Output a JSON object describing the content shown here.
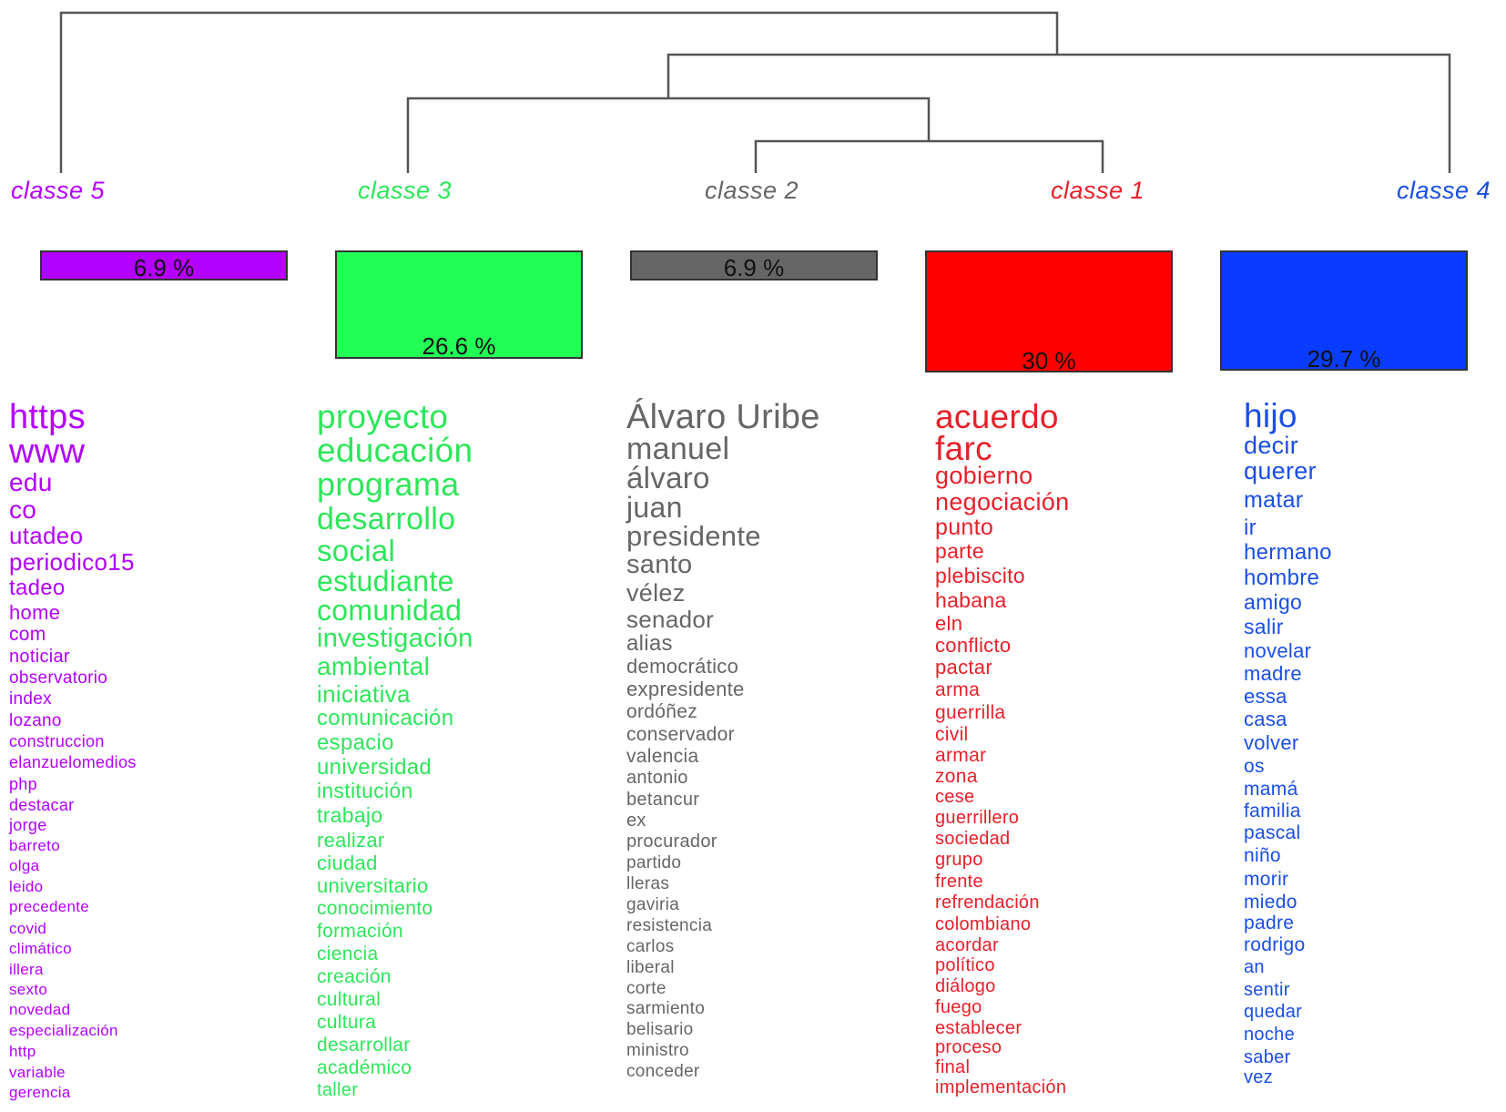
{
  "classes": [
    {
      "id": "classe-5",
      "label": "classe   5",
      "color": "#b300ff",
      "bar_fill": "#b300ff",
      "percent": 6.9,
      "percent_label": "6.9 %",
      "words": [
        "https",
        "www",
        "edu",
        "co",
        "utadeo",
        "periodico15",
        "tadeo",
        "home",
        "com",
        "noticiar",
        "observatorio",
        "index",
        "lozano",
        "construccion",
        "elanzuelomedios",
        "php",
        "destacar",
        "jorge",
        "barreto",
        "olga",
        "leido",
        "precedente",
        "covid",
        "climático",
        "illera",
        "sexto",
        "novedad",
        "especialización",
        "http",
        "variable",
        "gerencia"
      ]
    },
    {
      "id": "classe-3",
      "label": "classe   3",
      "color": "#2ee65a",
      "bar_fill": "#22ff55",
      "percent": 26.6,
      "percent_label": "26.6 %",
      "words": [
        "proyecto",
        "educación",
        "programa",
        "desarrollo",
        "social",
        "estudiante",
        "comunidad",
        "investigación",
        "ambiental",
        "iniciativa",
        "comunicación",
        "espacio",
        "universidad",
        "institución",
        "trabajo",
        "realizar",
        "ciudad",
        "universitario",
        "conocimiento",
        "formación",
        "ciencia",
        "creación",
        "cultural",
        "cultura",
        "desarrollar",
        "académico",
        "taller"
      ]
    },
    {
      "id": "classe-2",
      "label": "classe   2",
      "color": "#666666",
      "bar_fill": "#666666",
      "percent": 6.9,
      "percent_label": "6.9 %",
      "words": [
        "Álvaro Uribe",
        "manuel",
        "álvaro",
        "juan",
        "presidente",
        "santo",
        "vélez",
        "senador",
        "alias",
        "democrático",
        "expresidente",
        "ordóñez",
        "conservador",
        "valencia",
        "antonio",
        "betancur",
        "ex",
        "procurador",
        "partido",
        "lleras",
        "gaviria",
        "resistencia",
        "carlos",
        "liberal",
        "corte",
        "sarmiento",
        "belisario",
        "ministro",
        "conceder"
      ]
    },
    {
      "id": "classe-1",
      "label": "classe   1",
      "color": "#e8202a",
      "bar_fill": "#ff0000",
      "percent": 30,
      "percent_label": "30 %",
      "words": [
        "acuerdo",
        "farc",
        "gobierno",
        "negociación",
        "punto",
        "parte",
        "plebiscito",
        "habana",
        "eln",
        "conflicto",
        "pactar",
        "arma",
        "guerrilla",
        "civil",
        "armar",
        "zona",
        "cese",
        "guerrillero",
        "sociedad",
        "grupo",
        "frente",
        "refrendación",
        "colombiano",
        "acordar",
        "político",
        "diálogo",
        "fuego",
        "establecer",
        "proceso",
        "final",
        "implementación"
      ]
    },
    {
      "id": "classe-4",
      "label": "classe   4",
      "color": "#1a4ee6",
      "bar_fill": "#0a3cff",
      "percent": 29.7,
      "percent_label": "29.7 %",
      "words": [
        "hijo",
        "decir",
        "querer",
        "matar",
        "ir",
        "hermano",
        "hombre",
        "amigo",
        "salir",
        "novelar",
        "madre",
        "essa",
        "casa",
        "volver",
        "os",
        "mamá",
        "familia",
        "pascal",
        "niño",
        "morir",
        "miedo",
        "padre",
        "rodrigo",
        "an",
        "sentir",
        "quedar",
        "noche",
        "saber",
        "vez"
      ]
    }
  ]
}
